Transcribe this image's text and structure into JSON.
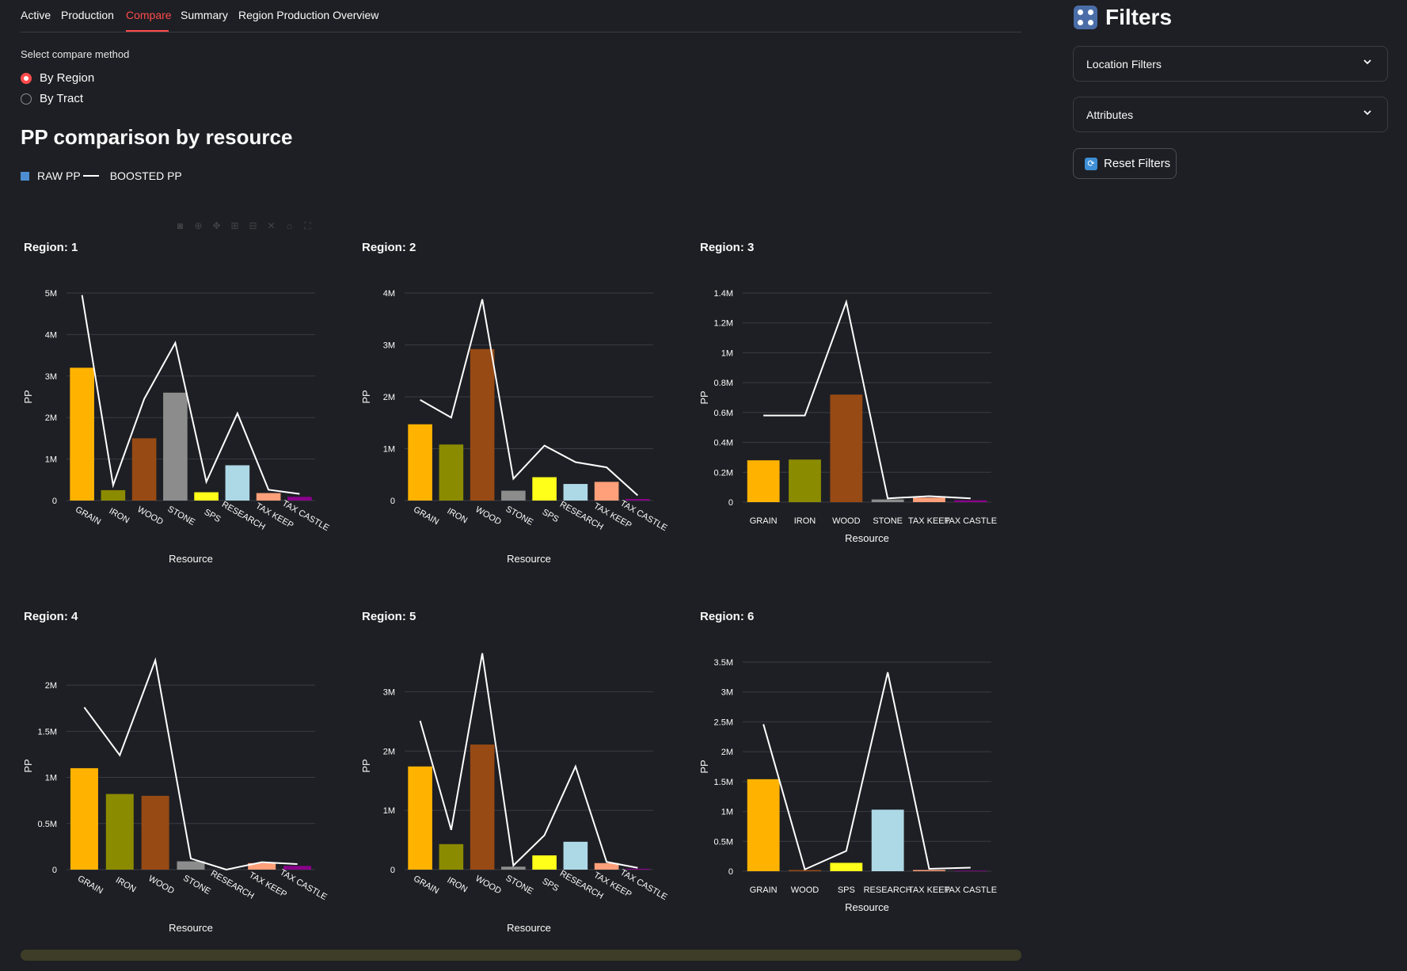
{
  "tabs": [
    {
      "label": "Active"
    },
    {
      "label": "Production"
    },
    {
      "label": "Compare",
      "active": true
    },
    {
      "label": "Summary"
    },
    {
      "label": "Region Production Overview"
    }
  ],
  "compare": {
    "title": "Select compare method",
    "options": [
      "By Region",
      "By Tract"
    ],
    "selected": "By Region"
  },
  "section_title": "PP comparison by resource",
  "legend": {
    "raw": "RAW PP",
    "boosted": "BOOSTED PP",
    "raw_color": "#4c8ed1",
    "boosted_color": "#ffffff"
  },
  "colors": {
    "GRAIN": "#ffb300",
    "IRON": "#8b8b00",
    "WOOD": "#974a14",
    "STONE": "#8c8c8c",
    "SPS": "#ffff1a",
    "RESEARCH": "#add8e6",
    "TAX KEEP": "#ffa07a",
    "TAX CASTLE": "#8b008b",
    "accent": "#ff4b4b"
  },
  "chart_data": [
    {
      "type": "bar",
      "title": "Region: 1",
      "xlabel": "Resource",
      "ylabel": "PP",
      "rotate": true,
      "categories": [
        "GRAIN",
        "IRON",
        "WOOD",
        "STONE",
        "SPS",
        "RESEARCH",
        "TAX KEEP",
        "TAX CASTLE"
      ],
      "raw": [
        3200000,
        250000,
        1500000,
        2600000,
        200000,
        850000,
        180000,
        90000
      ],
      "boosted": [
        4950000,
        370000,
        2450000,
        3800000,
        450000,
        2100000,
        260000,
        160000
      ],
      "ylim": [
        0,
        5000000
      ],
      "ticks": [
        0,
        1000000,
        2000000,
        3000000,
        4000000,
        5000000
      ],
      "tick_labels": [
        "0",
        "1M",
        "2M",
        "3M",
        "4M",
        "5M"
      ]
    },
    {
      "type": "bar",
      "title": "Region: 2",
      "xlabel": "Resource",
      "ylabel": "PP",
      "rotate": true,
      "categories": [
        "GRAIN",
        "IRON",
        "WOOD",
        "STONE",
        "SPS",
        "RESEARCH",
        "TAX KEEP",
        "TAX CASTLE"
      ],
      "raw": [
        1470000,
        1080000,
        2920000,
        190000,
        450000,
        320000,
        360000,
        30000
      ],
      "boosted": [
        1940000,
        1600000,
        3880000,
        420000,
        1060000,
        740000,
        640000,
        100000
      ],
      "ylim": [
        0,
        4000000
      ],
      "ticks": [
        0,
        1000000,
        2000000,
        3000000,
        4000000
      ],
      "tick_labels": [
        "0",
        "1M",
        "2M",
        "3M",
        "4M"
      ]
    },
    {
      "type": "bar",
      "title": "Region: 3",
      "xlabel": "Resource",
      "ylabel": "PP",
      "rotate": false,
      "categories": [
        "GRAIN",
        "IRON",
        "WOOD",
        "STONE",
        "TAX KEEP",
        "TAX CASTLE"
      ],
      "raw": [
        280000,
        285000,
        720000,
        18000,
        30000,
        12000
      ],
      "boosted": [
        580000,
        580000,
        1340000,
        25000,
        40000,
        25000
      ],
      "ylim": [
        0,
        1400000
      ],
      "ticks": [
        0,
        200000,
        400000,
        600000,
        800000,
        1000000,
        1200000,
        1400000
      ],
      "tick_labels": [
        "0",
        "0.2M",
        "0.4M",
        "0.6M",
        "0.8M",
        "1M",
        "1.2M",
        "1.4M"
      ]
    },
    {
      "type": "bar",
      "title": "Region: 4",
      "xlabel": "Resource",
      "ylabel": "PP",
      "rotate": true,
      "categories": [
        "GRAIN",
        "IRON",
        "WOOD",
        "STONE",
        "RESEARCH",
        "TAX KEEP",
        "TAX CASTLE"
      ],
      "raw": [
        1100000,
        820000,
        800000,
        90000,
        0,
        70000,
        40000
      ],
      "boosted": [
        1760000,
        1240000,
        2270000,
        120000,
        0,
        80000,
        60000
      ],
      "ylim": [
        0,
        2250000
      ],
      "ticks": [
        0,
        500000,
        1000000,
        1500000,
        2000000
      ],
      "tick_labels": [
        "0",
        "0.5M",
        "1M",
        "1.5M",
        "2M"
      ]
    },
    {
      "type": "bar",
      "title": "Region: 5",
      "xlabel": "Resource",
      "ylabel": "PP",
      "rotate": true,
      "categories": [
        "GRAIN",
        "IRON",
        "WOOD",
        "STONE",
        "SPS",
        "RESEARCH",
        "TAX KEEP",
        "TAX CASTLE"
      ],
      "raw": [
        1740000,
        430000,
        2110000,
        50000,
        240000,
        470000,
        110000,
        15000
      ],
      "boosted": [
        2510000,
        670000,
        3650000,
        70000,
        580000,
        1740000,
        130000,
        30000
      ],
      "ylim": [
        0,
        3500000
      ],
      "ticks": [
        0,
        1000000,
        2000000,
        3000000
      ],
      "tick_labels": [
        "0",
        "1M",
        "2M",
        "3M"
      ]
    },
    {
      "type": "bar",
      "title": "Region: 6",
      "xlabel": "Resource",
      "ylabel": "PP",
      "rotate": false,
      "categories": [
        "GRAIN",
        "WOOD",
        "SPS",
        "RESEARCH",
        "TAX KEEP",
        "TAX CASTLE"
      ],
      "raw": [
        1540000,
        20000,
        140000,
        1030000,
        20000,
        10000
      ],
      "boosted": [
        2460000,
        30000,
        340000,
        3330000,
        40000,
        60000
      ],
      "ylim": [
        0,
        3500000
      ],
      "ticks": [
        0,
        500000,
        1000000,
        1500000,
        2000000,
        2500000,
        3000000,
        3500000
      ],
      "tick_labels": [
        "0",
        "0.5M",
        "1M",
        "1.5M",
        "2M",
        "2.5M",
        "3M",
        "3.5M"
      ]
    }
  ],
  "sidebar": {
    "title": "Filters",
    "icon": "dice-icon",
    "expanders": [
      {
        "label": "Location Filters"
      },
      {
        "label": "Attributes"
      }
    ],
    "reset_label": "Reset Filters",
    "reset_icon": "refresh-icon"
  }
}
